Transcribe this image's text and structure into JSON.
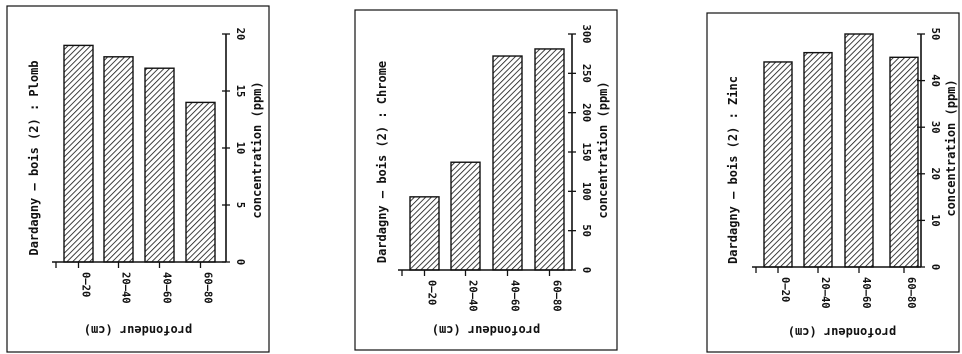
{
  "chart_data": [
    {
      "type": "bar",
      "title": "Dardagny – bois (2) : Plomb",
      "categories": [
        "0–20",
        "20–40",
        "40–60",
        "60–80"
      ],
      "values": [
        19,
        18,
        17,
        14
      ],
      "xlabel": "profondeur (cm)",
      "ylabel": "concentration (ppm)",
      "ylim": [
        0,
        20
      ],
      "yticks": [
        0,
        5,
        10,
        15,
        20
      ],
      "ytick_labels": [
        "0",
        "5",
        "10",
        "15",
        "20"
      ]
    },
    {
      "type": "bar",
      "title": "Dardagny – bois (2) : Chrome",
      "categories": [
        "0–20",
        "20–40",
        "40–60",
        "60–80"
      ],
      "values": [
        93,
        137,
        272,
        281
      ],
      "xlabel": "profondeur (cm)",
      "ylabel": "concentration (ppm)",
      "ylim": [
        0,
        300
      ],
      "yticks": [
        0,
        50,
        100,
        150,
        200,
        250,
        300
      ],
      "ytick_labels": [
        "0",
        "50",
        "100",
        "150",
        "200",
        "250",
        "300"
      ]
    },
    {
      "type": "bar",
      "title": "Dardagny – bois (2) : Zinc",
      "categories": [
        "0–20",
        "20–40",
        "40–60",
        "60–80"
      ],
      "values": [
        44,
        46,
        50,
        45
      ],
      "xlabel": "profondeur (cm)",
      "ylabel": "concentration (ppm)",
      "ylim": [
        0,
        50
      ],
      "yticks": [
        0,
        10,
        20,
        30,
        40,
        50
      ],
      "ytick_labels": [
        "0",
        "10",
        "20",
        "30",
        "40",
        "50"
      ]
    }
  ]
}
